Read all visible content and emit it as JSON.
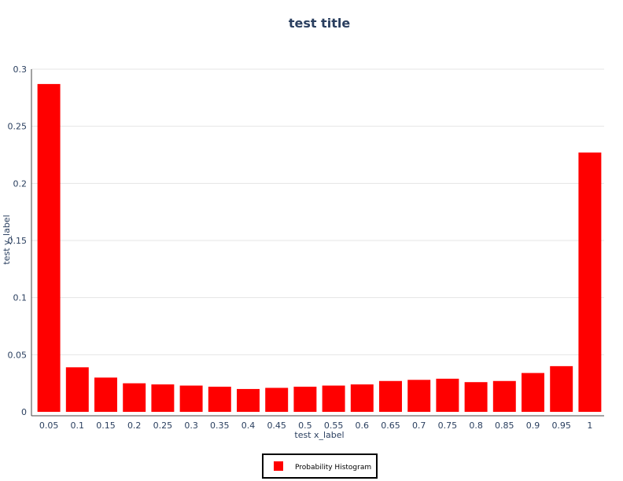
{
  "chart_data": {
    "type": "bar",
    "title": "test title",
    "xlabel": "test x_label",
    "ylabel": "test y_label",
    "categories": [
      "0.05",
      "0.1",
      "0.15",
      "0.2",
      "0.25",
      "0.3",
      "0.35",
      "0.4",
      "0.45",
      "0.5",
      "0.55",
      "0.6",
      "0.65",
      "0.7",
      "0.75",
      "0.8",
      "0.85",
      "0.9",
      "0.95",
      "1"
    ],
    "series": [
      {
        "name": "Probability Histogram",
        "color": "#ff0000",
        "values": [
          0.287,
          0.039,
          0.03,
          0.025,
          0.024,
          0.023,
          0.022,
          0.02,
          0.021,
          0.022,
          0.023,
          0.024,
          0.027,
          0.028,
          0.029,
          0.026,
          0.027,
          0.034,
          0.04,
          0.227
        ]
      }
    ],
    "yticks": [
      "0",
      "0.05",
      "0.1",
      "0.15",
      "0.2",
      "0.25",
      "0.3"
    ],
    "ylim": [
      0,
      0.3
    ],
    "grid": true,
    "legend_position": "bottom-center"
  }
}
